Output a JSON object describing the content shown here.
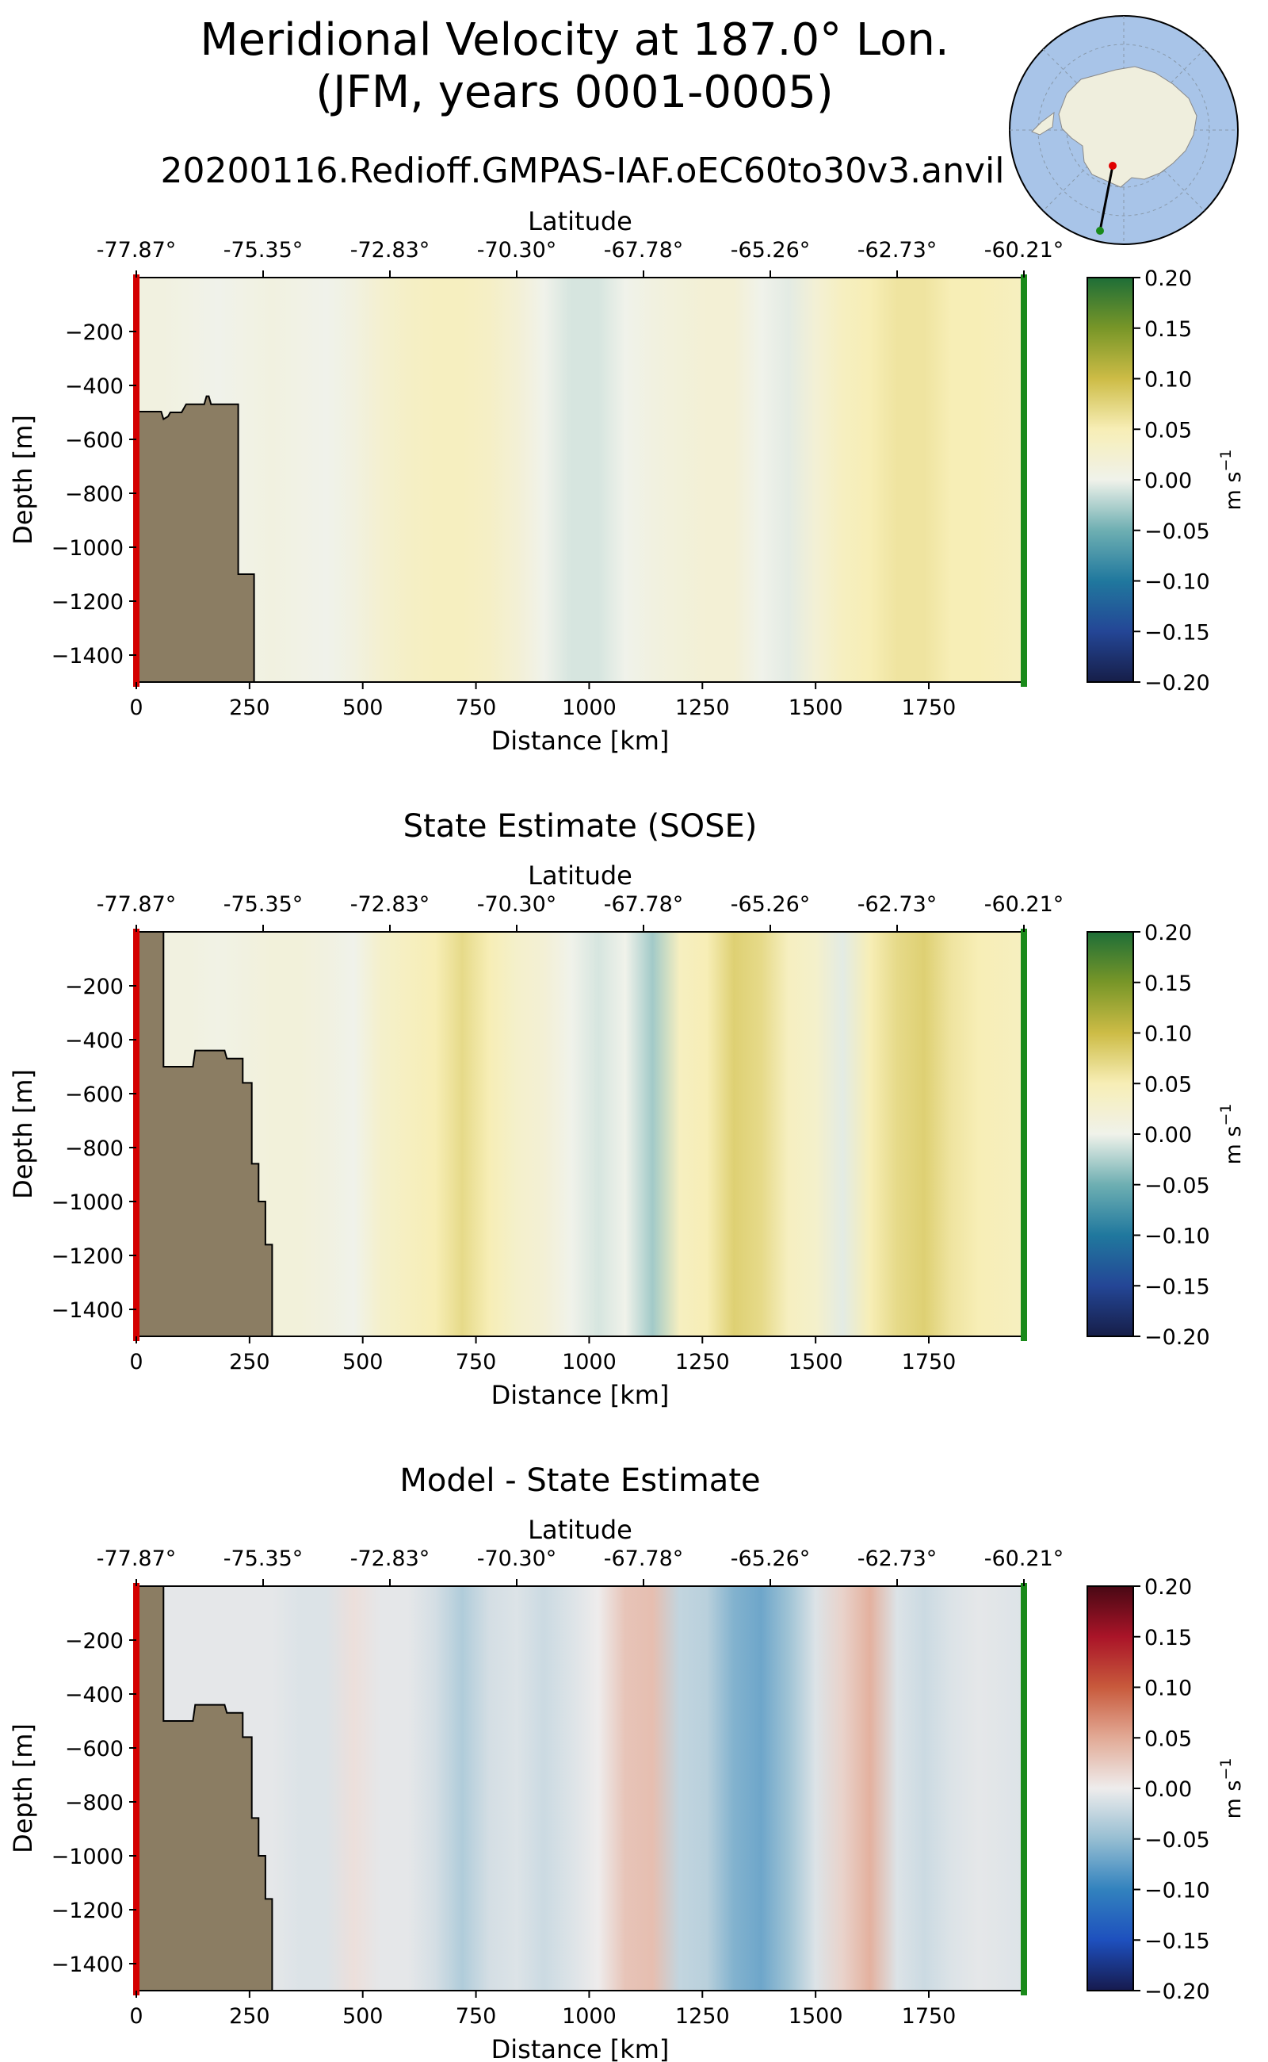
{
  "title": {
    "line1": "Meridional Velocity at 187.0° Lon.",
    "line2": "(JFM, years 0001-0005)",
    "run_name": "20200116.Redioff.GMPAS-IAF.oEC60to30v3.anvil"
  },
  "colors": {
    "land": "#8b7d63",
    "start_marker": "#d40000",
    "end_marker": "#1a8a1a",
    "ocean_map": "#a8c4e8",
    "ice_map": "#efeedd"
  },
  "chart_data": [
    {
      "type": "heatmap",
      "title": "",
      "xlabel": "Distance [km]",
      "ylabel": "Depth [m]",
      "top_axis_label": "Latitude",
      "xlim": [
        0,
        1960
      ],
      "ylim": [
        -1500,
        0
      ],
      "x_ticks": [
        0,
        250,
        500,
        750,
        1000,
        1250,
        1500,
        1750
      ],
      "y_ticks": [
        -200,
        -400,
        -600,
        -800,
        -1000,
        -1200,
        -1400
      ],
      "latitude_ticks": [
        "-77.87°",
        "-75.35°",
        "-72.83°",
        "-70.30°",
        "-67.78°",
        "-65.26°",
        "-62.73°",
        "-60.21°"
      ],
      "colormap": "yellow-green-blue diverging",
      "colorbar": {
        "label": "m s$^{-1}$",
        "ticks": [
          "0.20",
          "0.15",
          "0.10",
          "0.05",
          "0.00",
          "−0.05",
          "−0.10",
          "−0.15",
          "−0.20"
        ],
        "range": [
          -0.2,
          0.2
        ]
      },
      "velocity_profile": {
        "distance": [
          0,
          60,
          120,
          180,
          240,
          300,
          360,
          420,
          480,
          540,
          600,
          660,
          720,
          780,
          840,
          900,
          960,
          1020,
          1080,
          1140,
          1200,
          1260,
          1320,
          1380,
          1440,
          1500,
          1560,
          1620,
          1680,
          1740,
          1800,
          1860,
          1960
        ],
        "value": [
          0.01,
          0.01,
          0.005,
          0.0,
          0.005,
          0.01,
          0.005,
          0.0,
          0.01,
          0.025,
          0.035,
          0.04,
          0.04,
          0.035,
          0.02,
          0.0,
          -0.01,
          -0.01,
          0.0,
          0.01,
          0.015,
          0.02,
          0.02,
          0.0,
          -0.005,
          0.02,
          0.04,
          0.05,
          0.06,
          0.06,
          0.05,
          0.05,
          0.04
        ]
      },
      "land_profile": {
        "distance": [
          0,
          0,
          5,
          5,
          55,
          60,
          70,
          75,
          100,
          110,
          150,
          155,
          160,
          165,
          225,
          225,
          260,
          260,
          0
        ],
        "depth": [
          0,
          -500,
          -500,
          -497,
          -497,
          -525,
          -515,
          -500,
          -500,
          -470,
          -470,
          -440,
          -440,
          -470,
          -470,
          -1100,
          -1100,
          -1500,
          -1500
        ]
      }
    },
    {
      "type": "heatmap",
      "title": "State Estimate (SOSE)",
      "xlabel": "Distance [km]",
      "ylabel": "Depth [m]",
      "top_axis_label": "Latitude",
      "xlim": [
        0,
        1960
      ],
      "ylim": [
        -1500,
        0
      ],
      "x_ticks": [
        0,
        250,
        500,
        750,
        1000,
        1250,
        1500,
        1750
      ],
      "y_ticks": [
        -200,
        -400,
        -600,
        -800,
        -1000,
        -1200,
        -1400
      ],
      "latitude_ticks": [
        "-77.87°",
        "-75.35°",
        "-72.83°",
        "-70.30°",
        "-67.78°",
        "-65.26°",
        "-62.73°",
        "-60.21°"
      ],
      "colormap": "yellow-green-blue diverging",
      "colorbar": {
        "label": "m s$^{-1}$",
        "ticks": [
          "0.20",
          "0.15",
          "0.10",
          "0.05",
          "0.00",
          "−0.05",
          "−0.10",
          "−0.15",
          "−0.20"
        ],
        "range": [
          -0.2,
          0.2
        ]
      },
      "velocity_profile": {
        "distance": [
          0,
          60,
          120,
          180,
          240,
          300,
          360,
          420,
          480,
          540,
          600,
          660,
          720,
          780,
          840,
          900,
          960,
          1020,
          1080,
          1140,
          1200,
          1260,
          1320,
          1380,
          1440,
          1500,
          1560,
          1620,
          1680,
          1740,
          1800,
          1860,
          1960
        ],
        "value": [
          0.01,
          0.01,
          0.01,
          0.005,
          0.01,
          0.015,
          0.015,
          0.01,
          0.0,
          0.03,
          0.04,
          0.05,
          0.07,
          0.05,
          0.03,
          0.02,
          0.0,
          -0.01,
          0.0,
          -0.03,
          0.04,
          0.05,
          0.08,
          0.07,
          0.04,
          0.03,
          -0.005,
          0.05,
          0.07,
          0.08,
          0.06,
          0.05,
          0.04
        ]
      },
      "land_profile": {
        "distance": [
          0,
          0,
          60,
          60,
          125,
          130,
          195,
          200,
          235,
          235,
          255,
          255,
          270,
          270,
          285,
          285,
          300,
          300,
          0
        ],
        "depth": [
          0,
          0,
          0,
          -500,
          -500,
          -440,
          -440,
          -470,
          -470,
          -560,
          -560,
          -860,
          -860,
          -1000,
          -1000,
          -1160,
          -1160,
          -1500,
          -1500
        ]
      }
    },
    {
      "type": "heatmap",
      "title": "Model - State Estimate",
      "xlabel": "Distance [km]",
      "ylabel": "Depth [m]",
      "top_axis_label": "Latitude",
      "xlim": [
        0,
        1960
      ],
      "ylim": [
        -1500,
        0
      ],
      "x_ticks": [
        0,
        250,
        500,
        750,
        1000,
        1250,
        1500,
        1750
      ],
      "y_ticks": [
        -200,
        -400,
        -600,
        -800,
        -1000,
        -1200,
        -1400
      ],
      "latitude_ticks": [
        "-77.87°",
        "-75.35°",
        "-72.83°",
        "-70.30°",
        "-67.78°",
        "-65.26°",
        "-62.73°",
        "-60.21°"
      ],
      "colormap": "red-white-blue diverging",
      "colorbar": {
        "label": "m s$^{-1}$",
        "ticks": [
          "0.20",
          "0.15",
          "0.10",
          "0.05",
          "0.00",
          "−0.05",
          "−0.10",
          "−0.15",
          "−0.20"
        ],
        "range": [
          -0.2,
          0.2
        ]
      },
      "velocity_profile": {
        "distance": [
          0,
          60,
          120,
          180,
          240,
          300,
          360,
          420,
          480,
          540,
          600,
          660,
          720,
          780,
          840,
          900,
          960,
          1020,
          1080,
          1140,
          1200,
          1260,
          1320,
          1380,
          1440,
          1500,
          1560,
          1620,
          1680,
          1740,
          1800,
          1860,
          1960
        ],
        "value": [
          -0.005,
          -0.005,
          -0.005,
          -0.005,
          -0.005,
          -0.005,
          -0.01,
          -0.01,
          0.01,
          -0.005,
          -0.005,
          -0.015,
          -0.035,
          -0.015,
          -0.01,
          -0.02,
          -0.01,
          0.0,
          0.03,
          0.035,
          -0.025,
          -0.03,
          -0.06,
          -0.07,
          -0.045,
          -0.01,
          0.02,
          0.045,
          -0.01,
          -0.02,
          -0.01,
          -0.005,
          -0.01
        ]
      },
      "land_profile": {
        "distance": [
          0,
          0,
          60,
          60,
          125,
          130,
          195,
          200,
          235,
          235,
          255,
          255,
          270,
          270,
          285,
          285,
          300,
          300,
          0
        ],
        "depth": [
          0,
          0,
          0,
          -500,
          -500,
          -440,
          -440,
          -470,
          -470,
          -560,
          -560,
          -860,
          -860,
          -1000,
          -1000,
          -1160,
          -1160,
          -1500,
          -1500
        ]
      }
    }
  ]
}
